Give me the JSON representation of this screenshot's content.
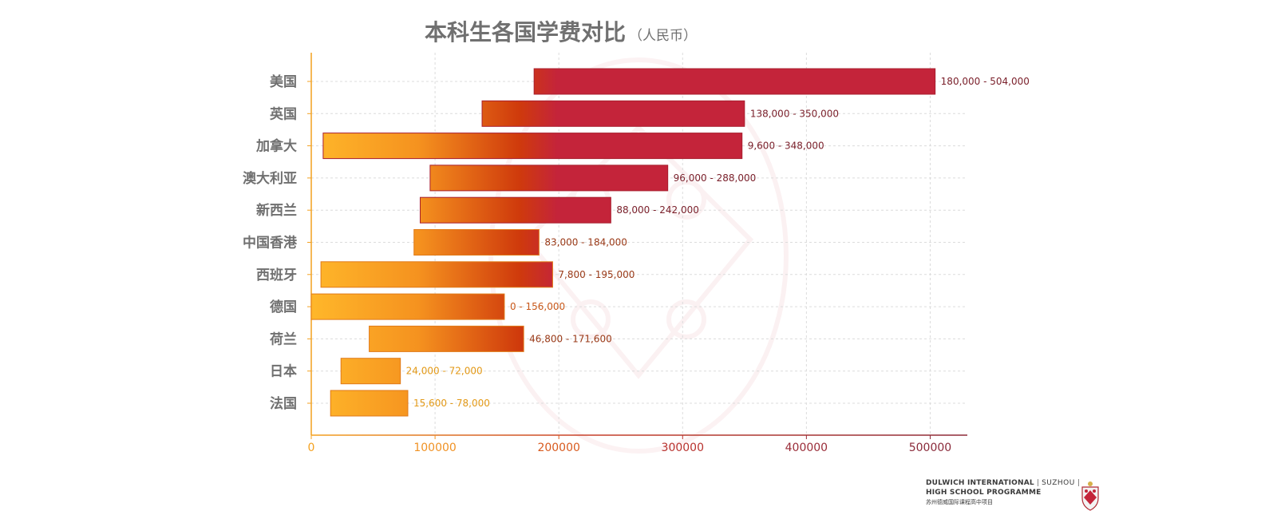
{
  "chart_data": {
    "type": "bar",
    "orientation": "horizontal-range",
    "title": "本科生各国学费对比",
    "subtitle": "（人民币）",
    "categories": [
      "美国",
      "英国",
      "加拿大",
      "澳大利亚",
      "新西兰",
      "中国香港",
      "西班牙",
      "德国",
      "荷兰",
      "日本",
      "法国"
    ],
    "ranges": [
      [
        180000,
        504000
      ],
      [
        138000,
        350000
      ],
      [
        9600,
        348000
      ],
      [
        96000,
        288000
      ],
      [
        88000,
        242000
      ],
      [
        83000,
        184000
      ],
      [
        7800,
        195000
      ],
      [
        0,
        156000
      ],
      [
        46800,
        171600
      ],
      [
        24000,
        72000
      ],
      [
        15600,
        78000
      ]
    ],
    "range_labels": [
      "180,000 - 504,000",
      "138,000 - 350,000",
      "9,600 - 348,000",
      "96,000 - 288,000",
      "88,000 - 242,000",
      "83,000 - 184,000",
      "7,800 - 195,000",
      "0 - 156,000",
      "46,800 - 171,600",
      "24,000 - 72,000",
      "15,600 - 78,000"
    ],
    "xlim": [
      0,
      530000
    ],
    "xticks": [
      0,
      100000,
      200000,
      300000,
      400000,
      500000
    ],
    "xtick_labels": [
      "0",
      "100000",
      "200000",
      "300000",
      "400000",
      "500000"
    ],
    "grid": true,
    "colors": {
      "low": "#ffb72a",
      "mid": "#f08a1e",
      "high": "#cf3a0c",
      "top": "#c4243a"
    }
  },
  "footer": {
    "org_name": "DULWICH INTERNATIONAL",
    "city": "SUZHOU",
    "programme": "HIGH SCHOOL PROGRAMME",
    "chinese_name": "苏州德威国际课程高中项目"
  }
}
